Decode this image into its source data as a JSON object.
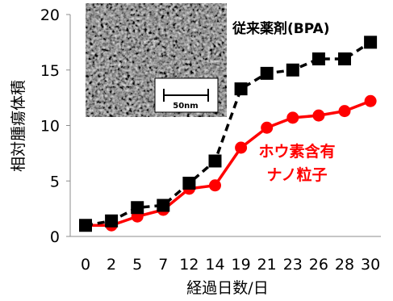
{
  "chart_data": {
    "type": "line",
    "categories": [
      "0",
      "2",
      "5",
      "7",
      "12",
      "14",
      "19",
      "21",
      "23",
      "26",
      "28",
      "30"
    ],
    "xlabel": "経過日数/日",
    "ylabel": "相対腫瘍体積",
    "ylim": [
      0,
      20
    ],
    "yticks": [
      "0",
      "5",
      "10",
      "15",
      "20"
    ],
    "grid": false,
    "series": [
      {
        "name": "従来薬剤(BPA)",
        "color": "#000000",
        "line_style": "dashed",
        "marker": "square",
        "values": [
          1.0,
          1.4,
          2.6,
          2.8,
          4.8,
          6.8,
          13.3,
          14.7,
          15.0,
          16.0,
          16.0,
          17.5
        ]
      },
      {
        "name_lines": [
          "ホウ素含有",
          "ナノ粒子"
        ],
        "color": "#ff0000",
        "line_style": "solid",
        "marker": "circle",
        "values": [
          1.0,
          1.0,
          1.8,
          2.4,
          4.3,
          4.6,
          8.0,
          9.8,
          10.7,
          10.9,
          11.3,
          12.2
        ]
      }
    ],
    "inset": {
      "scale_bar_label": "50nm"
    }
  }
}
